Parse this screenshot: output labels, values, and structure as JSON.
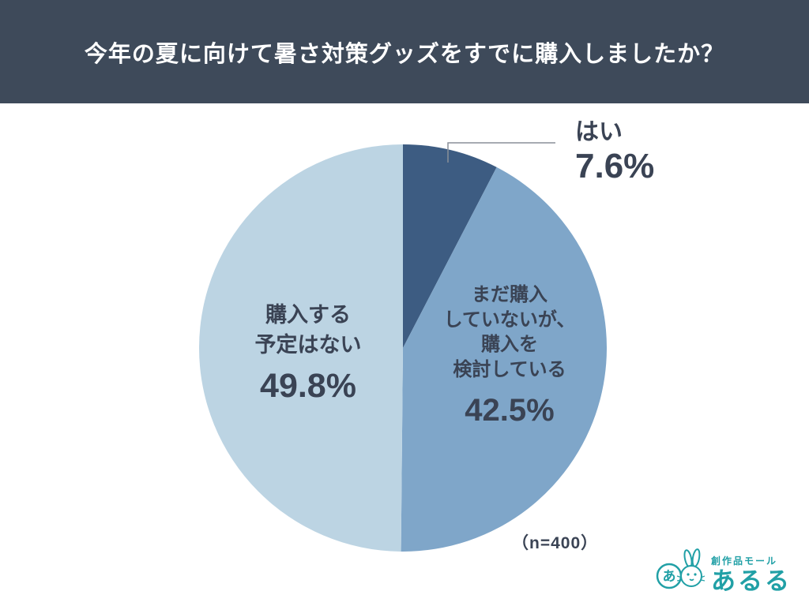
{
  "header": {
    "title": "今年の夏に向けて暑さ対策グッズをすでに購入しましたか？"
  },
  "chart_data": {
    "type": "pie",
    "title": "今年の夏に向けて暑さ対策グッズをすでに購入しましたか？",
    "sample_label": "（n=400）",
    "start_angle_deg": -90,
    "direction": "clockwise",
    "slices": [
      {
        "id": "yes",
        "label": "はい",
        "label_lines": [
          "はい"
        ],
        "value": 7.6,
        "display": "7.6%",
        "color": "#3D5C82"
      },
      {
        "id": "considering",
        "label": "まだ購入していないが、購入を検討している",
        "label_lines": [
          "まだ購入",
          "していないが、",
          "購入を",
          "検討している"
        ],
        "value": 42.5,
        "display": "42.5%",
        "color": "#7FA6C9"
      },
      {
        "id": "no-plan",
        "label": "購入する予定はない",
        "label_lines": [
          "購入する",
          "予定はない"
        ],
        "value": 49.8,
        "display": "49.8%",
        "color": "#BCD4E3"
      }
    ]
  },
  "logo": {
    "tagline": "創作品モール",
    "name": "あるる",
    "mark": "あ",
    "color": "#21A0A6"
  },
  "colors": {
    "header_bg": "#3E4A5A",
    "text": "#3A4354",
    "leader_line": "#8A8F98"
  }
}
